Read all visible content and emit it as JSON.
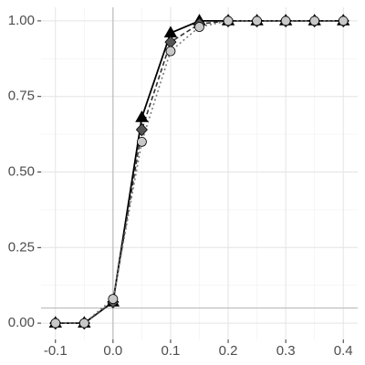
{
  "chart_data": {
    "type": "line",
    "x": [
      -0.1,
      -0.05,
      0,
      0.05,
      0.1,
      0.15,
      0.2,
      0.25,
      0.3,
      0.35,
      0.4
    ],
    "series": [
      {
        "color": "#000000",
        "marker": "triangle",
        "linestyle": "solid",
        "values": [
          0,
          0,
          0.07,
          0.68,
          0.96,
          1.0,
          1.0,
          1.0,
          1.0,
          1.0,
          1.0
        ]
      },
      {
        "color": "#555555",
        "marker": "diamond",
        "linestyle": "dashed",
        "values": [
          0,
          0,
          0.07,
          0.64,
          0.93,
          0.99,
          1.0,
          1.0,
          1.0,
          1.0,
          1.0
        ]
      },
      {
        "color": "#c8c8c8",
        "marker": "circle",
        "linestyle": "dotted",
        "values": [
          0,
          0,
          0.08,
          0.6,
          0.9,
          0.98,
          1.0,
          1.0,
          1.0,
          1.0,
          1.0
        ]
      }
    ],
    "xlim": [
      -0.125,
      0.425
    ],
    "xticks": [
      -0.1,
      {
        "value": 0,
        "label": "0.0"
      },
      0.1,
      0.2,
      0.3,
      0.4
    ],
    "ylim": [
      -0.054,
      1.045
    ],
    "yticks": [
      {
        "value": 0,
        "label": "0.00"
      },
      {
        "value": 0.25,
        "label": "0.25"
      },
      {
        "value": 0.5,
        "label": "0.50"
      },
      {
        "value": 0.75,
        "label": "0.75"
      },
      {
        "value": 1,
        "label": "1.00"
      }
    ],
    "hline": 0.05,
    "vline": 0,
    "grid": true
  }
}
